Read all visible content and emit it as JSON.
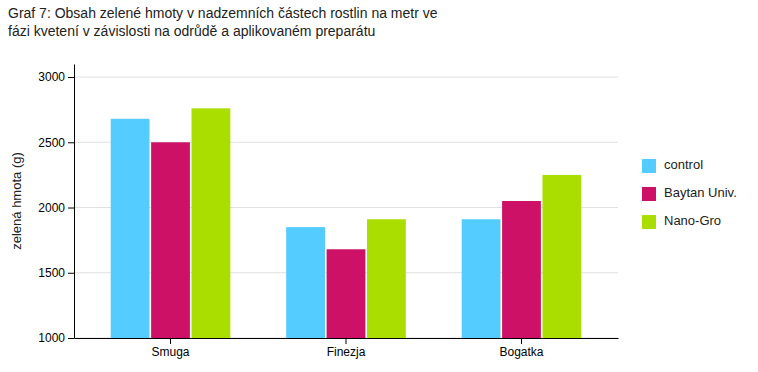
{
  "chart_data": {
    "type": "bar",
    "title": "Graf 7: Obsah zelené hmoty v nadzemních částech rostlin na metr ve\nfázi kvetení v závislosti na odrůdě a aplikovaném preparátu",
    "categories": [
      "Smuga",
      "Finezja",
      "Bogatka"
    ],
    "series": [
      {
        "name": "control",
        "color": "#55ccff",
        "values": [
          2680,
          1850,
          1910
        ]
      },
      {
        "name": "Baytan Univ.",
        "color": "#cc1166",
        "values": [
          2500,
          1680,
          2050
        ]
      },
      {
        "name": "Nano-Gro",
        "color": "#aadd00",
        "values": [
          2760,
          1910,
          2250
        ]
      }
    ],
    "ylabel": "zelená hmota (g)",
    "ylim": [
      1000,
      3100
    ],
    "yticks": [
      1000,
      1500,
      2000,
      2500,
      3000
    ],
    "grid": true,
    "legend": "right"
  }
}
